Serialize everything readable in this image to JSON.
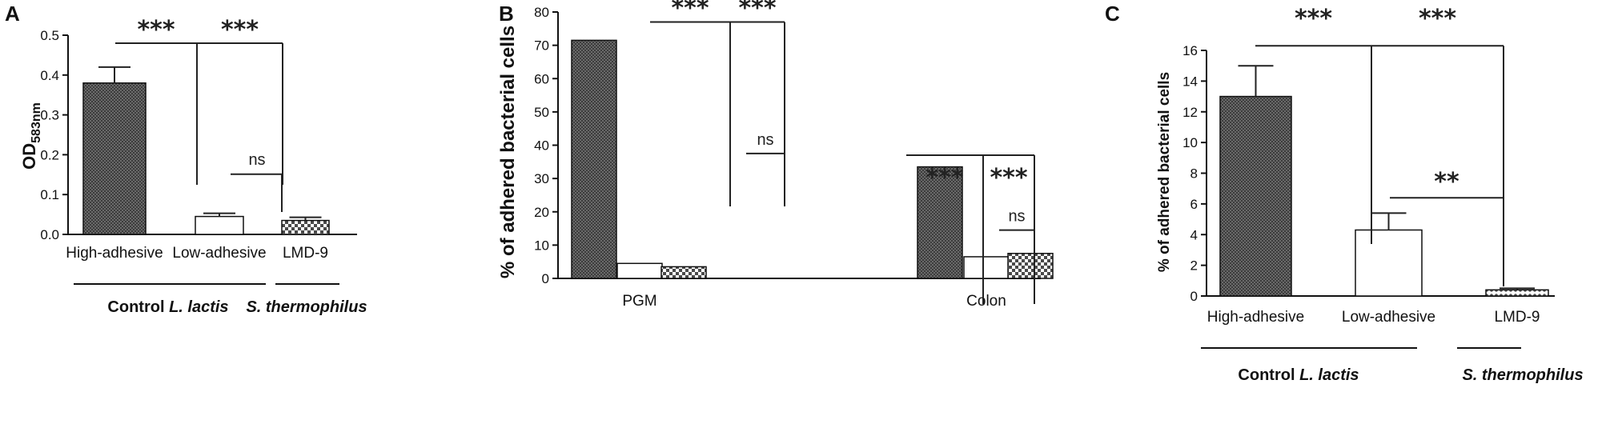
{
  "colors": {
    "axis": "#111111",
    "dark_fill": "#5a5a5a",
    "white_fill": "#ffffff",
    "check_fill": "#555555"
  },
  "chart_data": [
    {
      "panel": "A",
      "type": "bar",
      "ylabel": "OD",
      "ylabel_sub": "583nm",
      "ylim": [
        0,
        0.5
      ],
      "yticks": [
        0.0,
        0.1,
        0.2,
        0.3,
        0.4,
        0.5
      ],
      "categories": [
        "High-adhesive",
        "Low-adhesive",
        "LMD-9"
      ],
      "values": [
        0.38,
        0.045,
        0.035
      ],
      "errors": [
        0.04,
        0.008,
        0.008
      ],
      "fills": [
        "dark",
        "white",
        "check"
      ],
      "groups": [
        {
          "label": "Control ",
          "italic": "L. lactis",
          "from": 0,
          "to": 1
        },
        {
          "label": "",
          "italic": "S. thermophilus",
          "from": 2,
          "to": 2
        }
      ],
      "brackets": [
        {
          "type": "fork",
          "from": 0,
          "to": 1,
          "hub_to": 2,
          "y": 0.48,
          "labels": [
            "***",
            "***"
          ]
        },
        {
          "type": "simple",
          "from": 1,
          "to": 2,
          "y": 0.155,
          "labels": [
            "ns"
          ]
        }
      ]
    },
    {
      "panel": "B",
      "type": "bar",
      "ylabel": "% of adhered bacterial cells",
      "ylim": [
        0,
        80
      ],
      "yticks": [
        0,
        10,
        20,
        30,
        40,
        50,
        60,
        70,
        80
      ],
      "categories": [
        "PGM",
        "Colon"
      ],
      "series": [
        {
          "fill": "dark",
          "values": [
            71.5,
            33.5
          ]
        },
        {
          "fill": "white",
          "values": [
            4.5,
            6.5
          ]
        },
        {
          "fill": "check",
          "values": [
            3.5,
            7.5
          ]
        }
      ],
      "brackets": [
        {
          "group": 0,
          "from": 0,
          "to": 1,
          "hub_to": 2,
          "y": 77,
          "labels": [
            "***",
            "***"
          ],
          "type": "fork"
        },
        {
          "group": 0,
          "from": 1,
          "to": 2,
          "y": 37.5,
          "labels": [
            "ns"
          ],
          "type": "simple"
        },
        {
          "group": 1,
          "from": 0,
          "to": 1,
          "hub_to": 2,
          "y": 37,
          "labels": [
            "***",
            "***"
          ],
          "type": "fork"
        },
        {
          "group": 1,
          "from": 1,
          "to": 2,
          "y": 14.5,
          "labels": [
            "ns"
          ],
          "type": "simple"
        }
      ]
    },
    {
      "panel": "C",
      "type": "bar",
      "ylabel": "% of adhered bacterial cells",
      "ylim": [
        0,
        16
      ],
      "yticks": [
        0,
        2,
        4,
        6,
        8,
        10,
        12,
        14,
        16
      ],
      "categories": [
        "High-adhesive",
        "Low-adhesive",
        "LMD-9"
      ],
      "values": [
        13.0,
        4.3,
        0.4
      ],
      "errors": [
        2.0,
        1.1,
        0.1
      ],
      "fills": [
        "dark",
        "white",
        "dots"
      ],
      "groups": [
        {
          "label": "Control ",
          "italic": "L. lactis",
          "from": 0,
          "to": 1
        },
        {
          "label": "",
          "italic": "S. thermophilus",
          "from": 2,
          "to": 2
        }
      ],
      "brackets": [
        {
          "type": "fork",
          "from": 0,
          "to": 1,
          "hub_to": 2,
          "y": 16.3,
          "labels": [
            "***",
            "***"
          ]
        },
        {
          "type": "simple",
          "from": 1,
          "to": 2,
          "y": 6.4,
          "labels": [
            "**"
          ]
        }
      ]
    }
  ]
}
